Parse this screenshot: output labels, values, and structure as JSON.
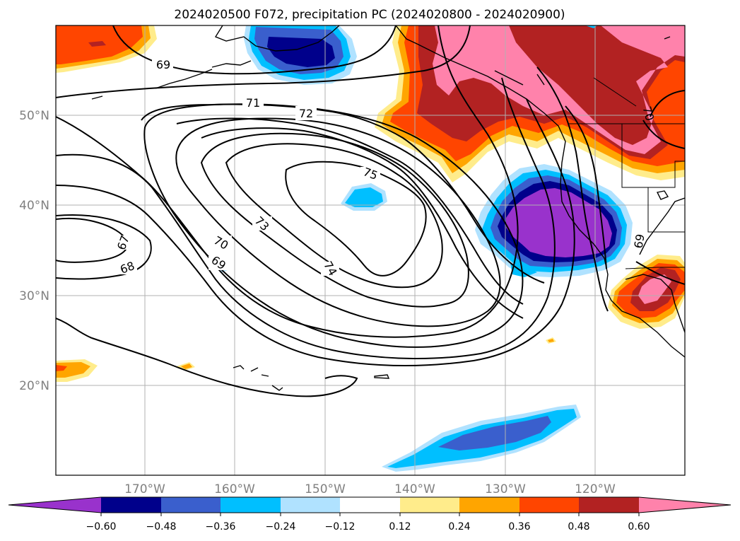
{
  "title": "2024020500 F072, precipitation PC (2024020800 - 2024020900)",
  "lon_labels": [
    "170°W",
    "160°W",
    "150°W",
    "140°W",
    "130°W",
    "120°W"
  ],
  "lat_labels": [
    "50°N",
    "40°N",
    "30°N",
    "20°N"
  ],
  "contour_labels": [
    "69",
    "71",
    "72",
    "75",
    "73",
    "70",
    "69",
    "67",
    "68",
    "74",
    "69",
    "70"
  ],
  "colorbar": {
    "ticks": [
      "−0.60",
      "−0.48",
      "−0.36",
      "−0.24",
      "−0.12",
      "0.12",
      "0.24",
      "0.36",
      "0.48",
      "0.60"
    ],
    "colors": [
      "#9932cc",
      "#00008b",
      "#3a5fcd",
      "#00bfff",
      "#b0e2ff",
      "#ffffff",
      "#ffec8b",
      "#ffa500",
      "#ff4500",
      "#b22222",
      "#ff82ab"
    ]
  },
  "colors": {
    "neg_extreme": "#9932cc",
    "neg_strong": "#00008b",
    "neg_mid": "#3a5fcd",
    "neg_light": "#00bfff",
    "neg_faint": "#b0e2ff",
    "pos_faint": "#ffec8b",
    "pos_light": "#ffa500",
    "pos_mid": "#ff4500",
    "pos_strong": "#b22222",
    "pos_extreme": "#ff82ab"
  }
}
